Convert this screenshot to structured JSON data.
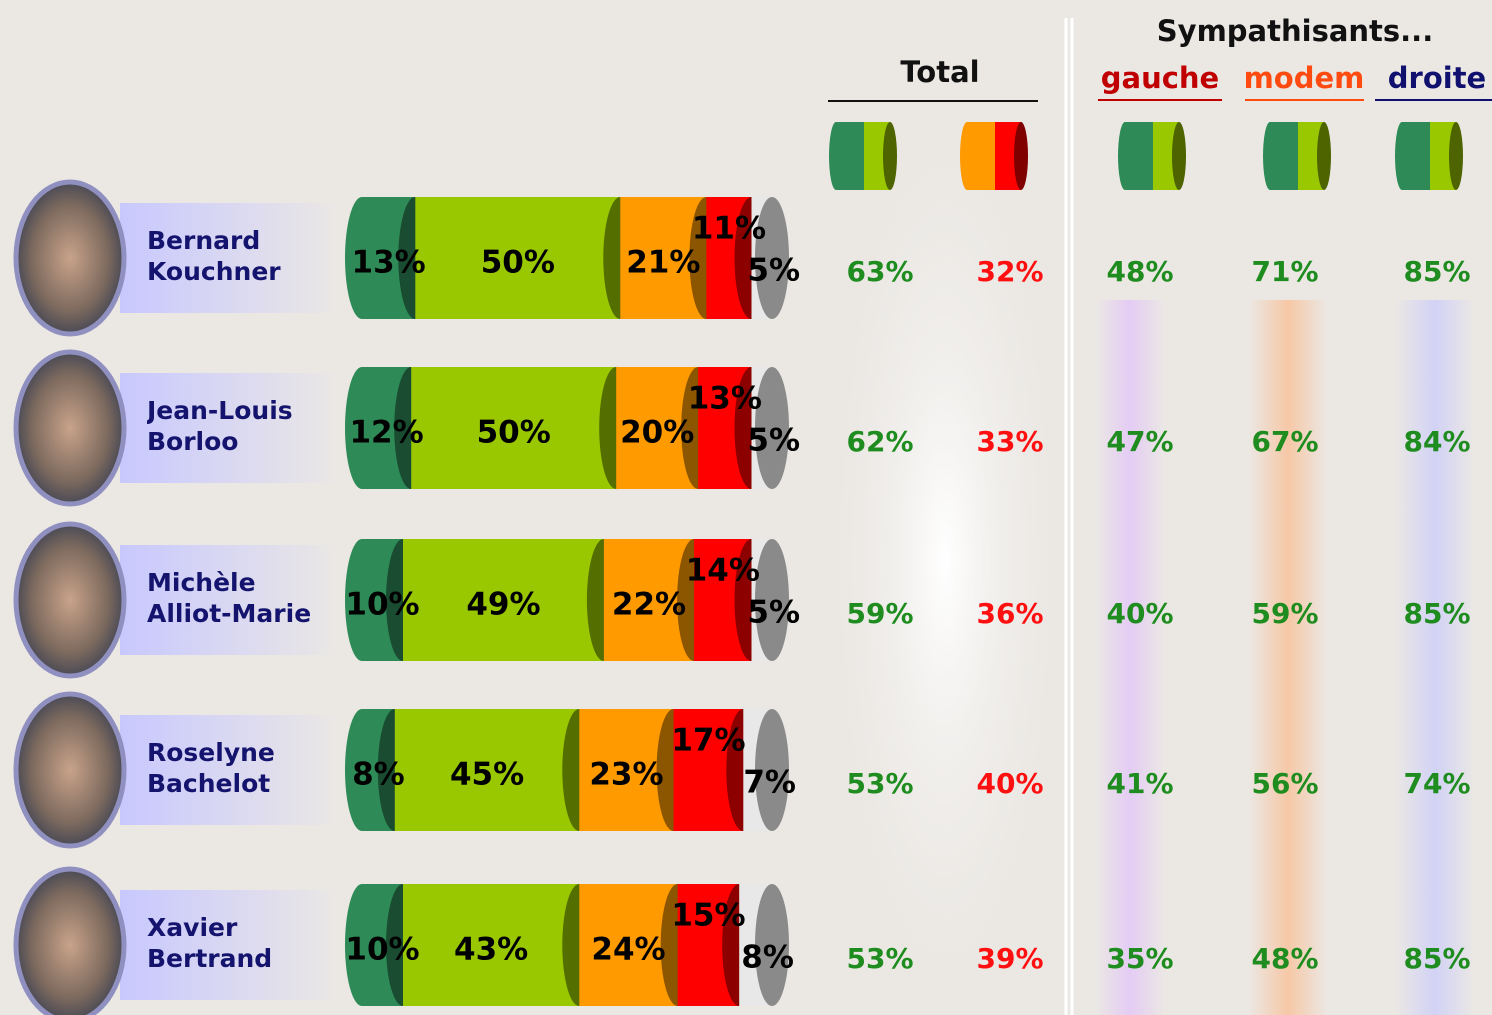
{
  "chart_data": {
    "type": "bar",
    "orientation": "horizontal",
    "stacked": true,
    "categories": [
      "Bernard Kouchner",
      "Jean-Louis Borloo",
      "Michèle Alliot-Marie",
      "Roselyne Bachelot",
      "Xavier Bertrand"
    ],
    "xlim": [
      0,
      100
    ],
    "series": [
      {
        "color": "#2e8b57",
        "values": [
          13,
          12,
          10,
          8,
          10
        ],
        "value_labels": [
          "13%",
          "12%",
          "10%",
          "8%",
          "10%"
        ]
      },
      {
        "color": "#99c800",
        "values": [
          50,
          50,
          49,
          45,
          43
        ],
        "value_labels": [
          "50%",
          "50%",
          "49%",
          "45%",
          "43%"
        ]
      },
      {
        "color": "#ff9a00",
        "values": [
          21,
          20,
          22,
          23,
          24
        ],
        "value_labels": [
          "21%",
          "20%",
          "22%",
          "23%",
          "24%"
        ]
      },
      {
        "color": "#ff0000",
        "values": [
          11,
          13,
          14,
          17,
          15
        ],
        "value_labels": [
          "11%",
          "13%",
          "14%",
          "17%",
          "15%"
        ]
      },
      {
        "color": "#e8e8e8",
        "values": [
          5,
          5,
          5,
          7,
          8
        ],
        "value_labels": [
          "5%",
          "5%",
          "5%",
          "7%",
          "8%"
        ]
      }
    ]
  },
  "table": {
    "header": {
      "total": "Total",
      "sympathisants": "Sympathisants...",
      "gauche": "gauche",
      "modem": "modem",
      "droite": "droite"
    },
    "rows": [
      [
        "63%",
        "32%",
        "48%",
        "71%",
        "85%"
      ],
      [
        "62%",
        "33%",
        "47%",
        "67%",
        "84%"
      ],
      [
        "59%",
        "36%",
        "40%",
        "59%",
        "85%"
      ],
      [
        "53%",
        "40%",
        "41%",
        "56%",
        "74%"
      ],
      [
        "53%",
        "39%",
        "35%",
        "48%",
        "85%"
      ]
    ]
  }
}
